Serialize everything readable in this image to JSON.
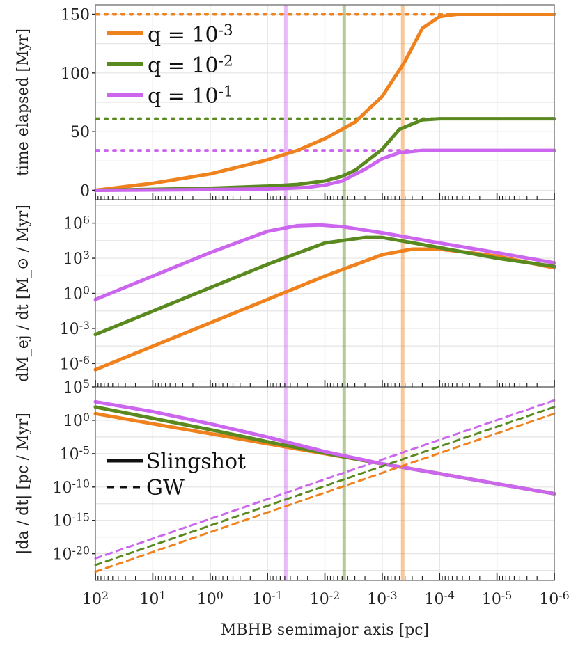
{
  "chart_data": {
    "type": "line",
    "x_axis": {
      "label": "MBHB semimajor axis [pc]",
      "scale": "log",
      "reversed": true,
      "xlim": [
        100,
        1e-06
      ],
      "tick_labels": [
        {
          "base": "10",
          "exp": "2",
          "value": 100
        },
        {
          "base": "10",
          "exp": "1",
          "value": 10
        },
        {
          "base": "10",
          "exp": "0",
          "value": 1
        },
        {
          "base": "10",
          "exp": "-1",
          "value": 0.1
        },
        {
          "base": "10",
          "exp": "-2",
          "value": 0.01
        },
        {
          "base": "10",
          "exp": "-3",
          "value": 0.001
        },
        {
          "base": "10",
          "exp": "-4",
          "value": 0.0001
        },
        {
          "base": "10",
          "exp": "-5",
          "value": 1e-05
        },
        {
          "base": "10",
          "exp": "-6",
          "value": 1e-06
        }
      ]
    },
    "vertical_lines": [
      {
        "name": "q = 10^-1",
        "color": "#cc66ee",
        "x": 0.048
      },
      {
        "name": "q = 10^-2",
        "color": "#5a8a1f",
        "x": 0.0046
      },
      {
        "name": "q = 10^-3",
        "color": "#f0821e",
        "x": 0.00044
      }
    ],
    "panels": [
      {
        "id": "time",
        "ylabel": "time elapsed [Myr]",
        "yscale": "linear",
        "ylim": [
          -8,
          158
        ],
        "ytick_labels": [
          {
            "text": "0",
            "value": 0
          },
          {
            "text": "50",
            "value": 50
          },
          {
            "text": "100",
            "value": 100
          },
          {
            "text": "150",
            "value": 150
          }
        ],
        "legend": {
          "placement": "top-left",
          "entries": [
            {
              "base": "q = 10",
              "exp": "-3",
              "color": "#f0821e"
            },
            {
              "base": "q = 10",
              "exp": "-2",
              "color": "#5a8a1f"
            },
            {
              "base": "q = 10",
              "exp": "-1",
              "color": "#cc66ee"
            }
          ]
        },
        "hlines": [
          {
            "name": "q = 10^-3 total",
            "y": 150,
            "color": "#f0821e",
            "style": "dotted"
          },
          {
            "name": "q = 10^-2 total",
            "y": 61,
            "color": "#5a8a1f",
            "style": "dotted"
          },
          {
            "name": "q = 10^-1 total",
            "y": 34,
            "color": "#cc66ee",
            "style": "dotted"
          }
        ],
        "series": [
          {
            "name": "q = 10^-3",
            "color": "#f0821e",
            "style": "solid",
            "x": [
              100,
              10,
              1,
              0.1,
              0.03,
              0.01,
              0.003,
              0.001,
              0.0004,
              0.0002,
              0.0001,
              5e-05,
              1e-05,
              1e-06
            ],
            "y": [
              0,
              6,
              14,
              26,
              34,
              44,
              58,
              80,
              110,
              138,
              148,
              150,
              150,
              150
            ]
          },
          {
            "name": "q = 10^-2",
            "color": "#5a8a1f",
            "style": "solid",
            "x": [
              100,
              10,
              1,
              0.1,
              0.03,
              0.01,
              0.005,
              0.003,
              0.001,
              0.0005,
              0.0002,
              0.0001,
              1e-05,
              1e-06
            ],
            "y": [
              0,
              0.8,
              1.8,
              3.5,
              5,
              8,
              12,
              17,
              35,
              52,
              60,
              61,
              61,
              61
            ]
          },
          {
            "name": "q = 10^-1",
            "color": "#cc66ee",
            "style": "solid",
            "x": [
              100,
              10,
              1,
              0.1,
              0.05,
              0.02,
              0.01,
              0.005,
              0.002,
              0.001,
              0.0005,
              0.0002,
              0.0001,
              1e-05,
              1e-06
            ],
            "y": [
              0,
              0.3,
              0.7,
              1.2,
              1.6,
              2.5,
              4.5,
              8,
              18,
              27,
              32,
              34,
              34,
              34,
              34
            ]
          }
        ]
      },
      {
        "id": "mass",
        "ylabel": "dM_ej / dt [M_⊙ / Myr]",
        "yscale": "log",
        "ylim": [
          1e-08,
          100000000.0
        ],
        "ytick_labels": [
          {
            "base": "10",
            "exp": "-6",
            "value": 1e-06
          },
          {
            "base": "10",
            "exp": "-3",
            "value": 0.001
          },
          {
            "base": "10",
            "exp": "0",
            "value": 1
          },
          {
            "base": "10",
            "exp": "3",
            "value": 1000.0
          },
          {
            "base": "10",
            "exp": "6",
            "value": 1000000.0
          }
        ],
        "series": [
          {
            "name": "q = 10^-3",
            "color": "#f0821e",
            "style": "solid",
            "x": [
              100,
              10,
              1,
              0.1,
              0.01,
              0.001,
              0.0003,
              0.0001,
              3e-05,
              1e-05,
              1e-06
            ],
            "y": [
              3e-07,
              3e-05,
              0.003,
              0.3,
              30,
              2000,
              6000,
              6000,
              3000,
              1500,
              150
            ]
          },
          {
            "name": "q = 10^-2",
            "color": "#5a8a1f",
            "style": "solid",
            "x": [
              100,
              10,
              1,
              0.1,
              0.01,
              0.002,
              0.001,
              0.0001,
              1e-05,
              1e-06
            ],
            "y": [
              0.0003,
              0.03,
              3,
              300,
              20000,
              60000,
              60000,
              8000,
              1000,
              200
            ]
          },
          {
            "name": "q = 10^-1",
            "color": "#cc66ee",
            "style": "solid",
            "x": [
              100,
              10,
              1,
              0.1,
              0.03,
              0.012,
              0.005,
              0.001,
              0.0001,
              1e-05,
              1e-06
            ],
            "y": [
              0.3,
              30,
              3000,
              200000,
              600000,
              700000,
              500000,
              150000,
              20000,
              3000,
              400
            ]
          }
        ]
      },
      {
        "id": "rate",
        "ylabel": "|da / dt| [pc / Myr]",
        "yscale": "log",
        "ylim": [
          1e-24,
          100000.0
        ],
        "ytick_labels": [
          {
            "base": "10",
            "exp": "-20",
            "value": 1e-20
          },
          {
            "base": "10",
            "exp": "-15",
            "value": 1e-15
          },
          {
            "base": "10",
            "exp": "-10",
            "value": 1e-10
          },
          {
            "base": "10",
            "exp": "-5",
            "value": 1e-05
          },
          {
            "base": "10",
            "exp": "0",
            "value": 1
          },
          {
            "base": "10",
            "exp": "5",
            "value": 100000.0
          }
        ],
        "legend": {
          "placement": "middle-left",
          "entries": [
            {
              "label": "Slingshot",
              "style": "solid"
            },
            {
              "label": "GW",
              "style": "dashed"
            }
          ]
        },
        "series": [
          {
            "name": "q = 10^-3 slingshot",
            "color": "#f0821e",
            "style": "solid",
            "x": [
              100,
              10,
              1,
              0.1,
              0.01,
              0.001,
              0.0001,
              1e-05,
              1e-06
            ],
            "y": [
              10,
              0.3,
              0.01,
              0.0003,
              1e-05,
              3e-07,
              1e-08,
              3e-10,
              1e-11
            ]
          },
          {
            "name": "q = 10^-2 slingshot",
            "color": "#5a8a1f",
            "style": "solid",
            "x": [
              100,
              10,
              1,
              0.1,
              0.01,
              0.001,
              0.0001,
              1e-05,
              1e-06
            ],
            "y": [
              100,
              2,
              0.04,
              0.0006,
              1.2e-05,
              3e-07,
              1e-08,
              3e-10,
              1e-11
            ]
          },
          {
            "name": "q = 10^-1 slingshot",
            "color": "#cc66ee",
            "style": "solid",
            "x": [
              100,
              10,
              1,
              0.1,
              0.01,
              0.001,
              0.0001,
              1e-05,
              1e-06
            ],
            "y": [
              600,
              20,
              0.3,
              0.003,
              2e-05,
              3e-07,
              1e-08,
              3e-10,
              1e-11
            ]
          },
          {
            "name": "q = 10^-1 GW",
            "color": "#cc66ee",
            "style": "dashed",
            "x": [
              100,
              1e-06
            ],
            "y": [
              2e-21,
              1000
            ]
          },
          {
            "name": "q = 10^-2 GW",
            "color": "#5a8a1f",
            "style": "dashed",
            "x": [
              100,
              1e-06
            ],
            "y": [
              2e-22,
              100
            ]
          },
          {
            "name": "q = 10^-3 GW",
            "color": "#f0821e",
            "style": "dashed",
            "x": [
              100,
              1e-06
            ],
            "y": [
              2e-23,
              10
            ]
          }
        ]
      }
    ]
  }
}
